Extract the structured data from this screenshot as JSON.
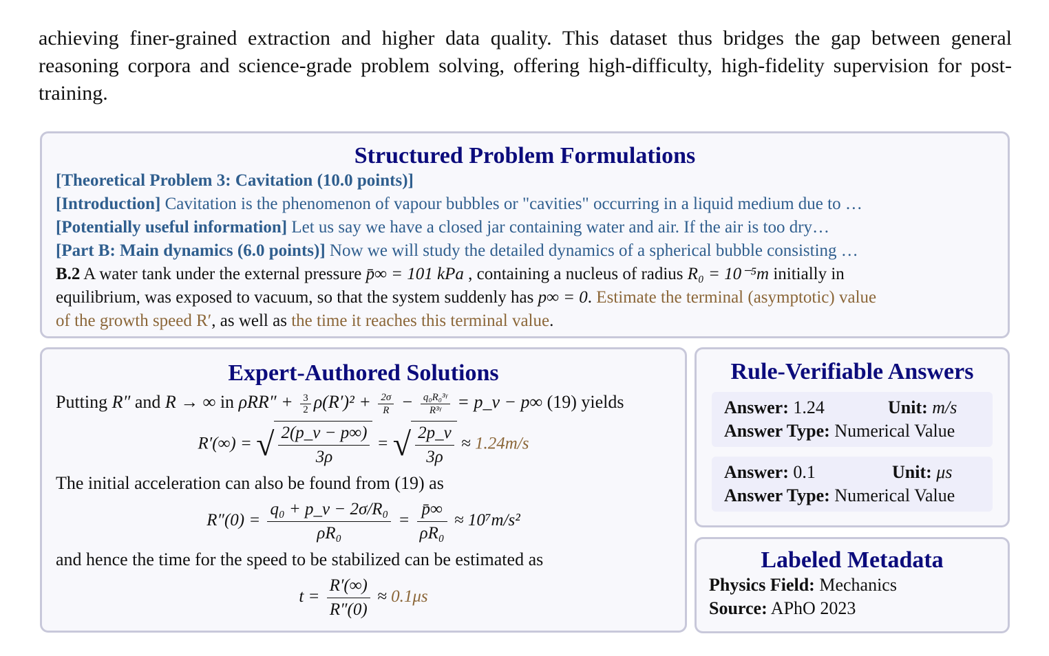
{
  "intro_text": "achieving finer-grained extraction and higher data quality. This dataset thus bridges the gap between general reasoning corpora and science-grade problem solving, offering high-difficulty, high-fidelity supervision for post-training.",
  "problem": {
    "title": "Structured Problem Formulations",
    "heading": "[Theoretical Problem 3: Cavitation (10.0 points)]",
    "intro_label": "[Introduction]",
    "intro_text": " Cavitation is the phenomenon of vapour bubbles or \"cavities\" occurring in a liquid medium due to …",
    "info_label": "[Potentially useful information]",
    "info_text": " Let us say we have a closed jar containing water and air. If the air is too dry…",
    "part_label": "[Part B: Main dynamics (6.0 points)]",
    "part_text": " Now we will study the detailed dynamics of a spherical bubble consisting …",
    "q_label": "B.2",
    "q_text1": " A water tank under the external pressure ",
    "q_math1": "p̄∞ = 101 kPa",
    "q_text2": " , containing a nucleus of radius ",
    "q_math2": "R₀ = 10⁻⁵m",
    "q_text3": " initially in",
    "q_text4": "equilibrium, was exposed to vacuum, so that the system suddenly has ",
    "q_math3": "p∞ = 0",
    "q_text5": ". ",
    "q_hl1": "Estimate the terminal (asymptotic) value",
    "q_hl2": "of the growth speed R′",
    "q_text6": ", as well as ",
    "q_hl3": "the time it reaches this terminal value",
    "q_text7": "."
  },
  "solution": {
    "title": "Expert-Authored Solutions",
    "line1_a": "Putting ",
    "line1_m1": "R″",
    "line1_b": " and ",
    "line1_m2": "R → ∞",
    "line1_c": " in ",
    "line1_m3": "ρRR″ + ",
    "f32n": "3",
    "f32d": "2",
    "line1_m4": "ρ(R′)² + ",
    "f2sn": "2σ",
    "f2sd": "R",
    "line1_m5": " − ",
    "fqn": "q₀R₀³ᵞ",
    "fqd": "R³ᵞ",
    "line1_m6": " = p_v − p∞",
    "line1_d": " (19) yields",
    "eq1_lhs": "R′(∞) = ",
    "eq1_n1": "2(p_v − p∞)",
    "eq1_d1": "3ρ",
    "eq1_eq": " = ",
    "eq1_n2": "2p_v",
    "eq1_d2": "3ρ",
    "eq1_approx": " ≈ ",
    "eq1_val": "1.24m/s",
    "line2": "The initial acceleration can also be found from (19) as",
    "eq2_lhs": "R″(0) = ",
    "eq2_n1": "q₀ + p_v − 2σ/R₀",
    "eq2_d1": "ρR₀",
    "eq2_eq": " = ",
    "eq2_n2": "p̄∞",
    "eq2_d2": "ρR₀",
    "eq2_val": " ≈ 10⁷m/s²",
    "line3": "and hence the time for the speed to be stabilized can be estimated as",
    "eq3_lhs": "t = ",
    "eq3_n": "R′(∞)",
    "eq3_d": "R″(0)",
    "eq3_approx": " ≈ ",
    "eq3_val": "0.1μs"
  },
  "answers": {
    "title": "Rule-Verifiable Answers",
    "items": [
      {
        "answer_label": "Answer:",
        "answer": " 1.24",
        "unit_label": "Unit:",
        "unit": " m/s",
        "type_label": "Answer Type:",
        "type": " Numerical Value"
      },
      {
        "answer_label": "Answer:",
        "answer": " 0.1",
        "unit_label": "Unit:",
        "unit": " μs",
        "type_label": "Answer Type:",
        "type": " Numerical Value"
      }
    ]
  },
  "metadata": {
    "title": "Labeled Metadata",
    "field_label": "Physics Field:",
    "field": " Mechanics",
    "source_label": "Source:",
    "source": " APhO 2023"
  },
  "colors": {
    "title": "#0c0c7c",
    "section_label": "#2f5e8e",
    "highlight": "#8b6638",
    "box_bg": "#f8f8fc",
    "box_border": "#c8c8da"
  }
}
